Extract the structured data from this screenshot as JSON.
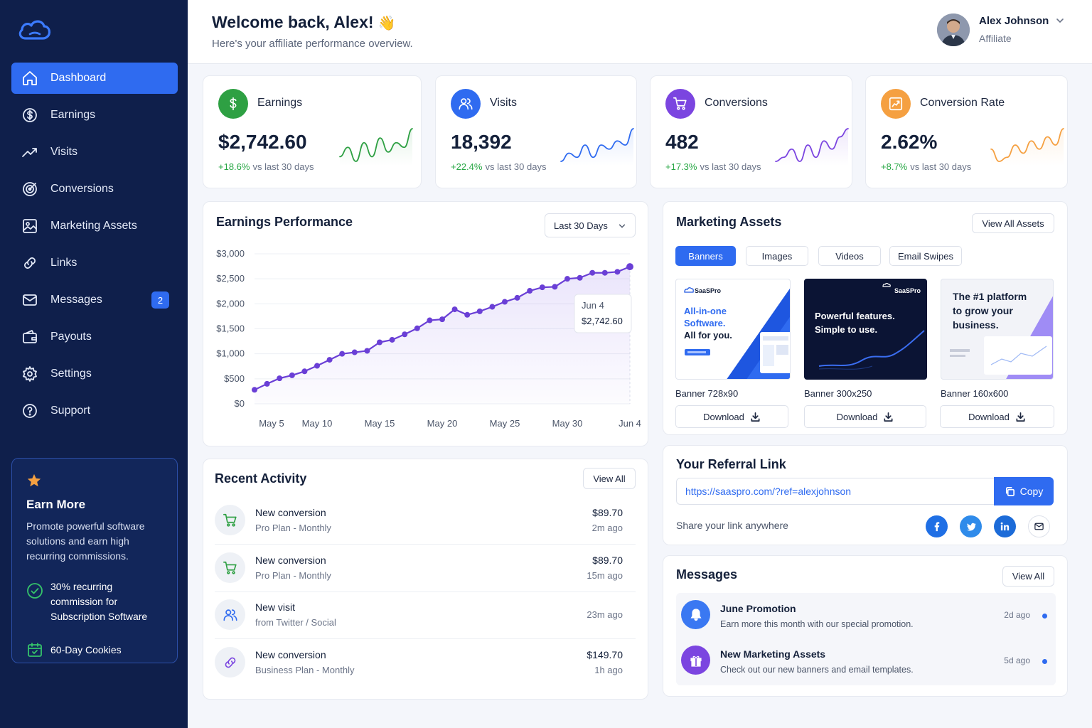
{
  "sidebar": {
    "items": [
      {
        "label": "Dashboard",
        "icon": "home-icon"
      },
      {
        "label": "Earnings",
        "icon": "dollar-circle-icon"
      },
      {
        "label": "Visits",
        "icon": "trend-icon"
      },
      {
        "label": "Conversions",
        "icon": "target-icon"
      },
      {
        "label": "Marketing Assets",
        "icon": "image-icon"
      },
      {
        "label": "Links",
        "icon": "link-icon"
      },
      {
        "label": "Messages",
        "icon": "mail-icon",
        "badge": "2"
      },
      {
        "label": "Payouts",
        "icon": "wallet-icon"
      },
      {
        "label": "Settings",
        "icon": "gear-icon"
      },
      {
        "label": "Support",
        "icon": "help-icon"
      }
    ],
    "promo": {
      "title": "Earn More",
      "description": "Promote powerful software solutions and earn high recurring commissions.",
      "perk1": "30% recurring commission for Subscription Software",
      "perk2": "60-Day Cookies"
    }
  },
  "header": {
    "welcome": "Welcome back, Alex!",
    "wave": "👋",
    "subtitle": "Here's your affiliate performance overview.",
    "user_name": "Alex Johnson",
    "user_role": "Affiliate"
  },
  "stats": [
    {
      "title": "Earnings",
      "value": "$2,742.60",
      "change": "+18.6%",
      "period": "vs last 30 days",
      "color": "#2ea043",
      "spark_color": "#2ea043",
      "spark": [
        3,
        5,
        2,
        6,
        3,
        7,
        4,
        6,
        5,
        9
      ]
    },
    {
      "title": "Visits",
      "value": "18,392",
      "change": "+22.4%",
      "period": "vs last 30 days",
      "color": "#2f6bf0",
      "spark_color": "#2f6bf0",
      "spark": [
        2,
        4,
        3,
        6,
        3,
        6,
        5,
        7,
        6,
        10
      ]
    },
    {
      "title": "Conversions",
      "value": "482",
      "change": "+17.3%",
      "period": "vs last 30 days",
      "color": "#7b45e0",
      "spark_color": "#7b45e0",
      "spark": [
        2,
        3,
        5,
        2,
        6,
        3,
        7,
        5,
        8,
        10
      ]
    },
    {
      "title": "Conversion Rate",
      "value": "2.62%",
      "change": "+8.7%",
      "period": "vs last 30 days",
      "color": "#f5a041",
      "spark_color": "#f5a041",
      "spark": [
        5,
        2,
        3,
        6,
        4,
        7,
        5,
        8,
        6,
        10
      ]
    }
  ],
  "earnings_perf": {
    "title": "Earnings Performance",
    "range": "Last 30 Days",
    "tooltip_date": "Jun 4",
    "tooltip_value": "$2,742.60"
  },
  "chart_data": {
    "type": "area",
    "title": "Earnings Performance",
    "x_ticks": [
      "May 5",
      "May 10",
      "May 15",
      "May 20",
      "May 25",
      "May 30",
      "Jun 4"
    ],
    "y_ticks": [
      "$0",
      "$500",
      "$1,000",
      "$1,500",
      "$2,000",
      "$2,500",
      "$3,000"
    ],
    "ylim": [
      0,
      3000
    ],
    "x": [
      "May 5",
      "May 6",
      "May 7",
      "May 8",
      "May 9",
      "May 10",
      "May 11",
      "May 12",
      "May 13",
      "May 14",
      "May 15",
      "May 16",
      "May 17",
      "May 18",
      "May 19",
      "May 20",
      "May 21",
      "May 22",
      "May 23",
      "May 24",
      "May 25",
      "May 26",
      "May 27",
      "May 28",
      "May 29",
      "May 30",
      "May 31",
      "Jun 1",
      "Jun 2",
      "Jun 3",
      "Jun 4"
    ],
    "values": [
      280,
      400,
      510,
      570,
      650,
      760,
      880,
      1000,
      1030,
      1060,
      1230,
      1280,
      1390,
      1510,
      1670,
      1690,
      1890,
      1780,
      1850,
      1940,
      2040,
      2120,
      2260,
      2330,
      2340,
      2500,
      2520,
      2620,
      2620,
      2640,
      2742.6
    ],
    "series_color": "#6a3fd6",
    "grid": true
  },
  "activity": {
    "title": "Recent Activity",
    "view_all": "View All",
    "rows": [
      {
        "title": "New conversion",
        "sub": "Pro Plan - Monthly",
        "amount": "$89.70",
        "time": "2m ago",
        "icon": "cart-icon",
        "color": "#2ea043"
      },
      {
        "title": "New conversion",
        "sub": "Pro Plan - Monthly",
        "amount": "$89.70",
        "time": "15m ago",
        "icon": "cart-icon",
        "color": "#2ea043"
      },
      {
        "title": "New visit",
        "sub": "from Twitter / Social",
        "amount": "",
        "time": "23m ago",
        "icon": "users-icon",
        "color": "#2f6bf0"
      },
      {
        "title": "New conversion",
        "sub": "Business Plan - Monthly",
        "amount": "$149.70",
        "time": "1h ago",
        "icon": "link-icon",
        "color": "#7b45e0"
      }
    ]
  },
  "assets": {
    "title": "Marketing Assets",
    "view_all": "View All Assets",
    "tabs": [
      "Banners",
      "Images",
      "Videos",
      "Email Swipes"
    ],
    "banners": [
      {
        "label": "Banner 728x90",
        "brand": "SaaSPro",
        "line1": "All-in-one",
        "line2": "Software.",
        "line3": "All for you.",
        "download": "Download"
      },
      {
        "label": "Banner 300x250",
        "brand": "SaaSPro",
        "line1": "Powerful features.",
        "line2": "Simple to use.",
        "download": "Download"
      },
      {
        "label": "Banner 160x600",
        "line1": "The #1 platform",
        "line2": "to grow your",
        "line3": "business.",
        "download": "Download"
      }
    ]
  },
  "referral": {
    "title": "Your Referral Link",
    "url": "https://saaspro.com/?ref=alexjohnson",
    "copy": "Copy",
    "share": "Share your link anywhere",
    "socials": [
      {
        "name": "facebook-icon",
        "glyph": "f",
        "color": "#1f6fe5"
      },
      {
        "name": "twitter-icon",
        "glyph": "🐦",
        "color": "#2f8bea"
      },
      {
        "name": "linkedin-icon",
        "glyph": "in",
        "color": "#1c6bd8"
      }
    ]
  },
  "messages": {
    "title": "Messages",
    "view_all": "View All",
    "rows": [
      {
        "title": "June Promotion",
        "sub": "Earn more this month with our special promotion.",
        "time": "2d ago",
        "color": "#3a78f2"
      },
      {
        "title": "New Marketing Assets",
        "sub": "Check out our new banners and email templates.",
        "time": "5d ago",
        "color": "#7b45e0"
      }
    ]
  }
}
